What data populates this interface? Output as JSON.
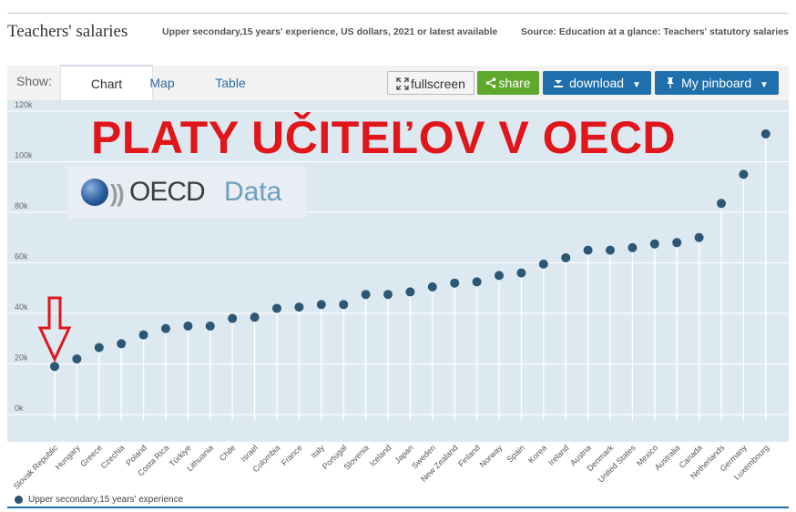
{
  "header": {
    "title": "Teachers' salaries",
    "subtitle": "Upper secondary,15 years' experience, US dollars, 2021 or latest available",
    "source": "Source: Education at a glance: Teachers' statutory salaries"
  },
  "tabs": {
    "show_label": "Show:",
    "items": [
      "Chart",
      "Map",
      "Table"
    ],
    "active": "Chart"
  },
  "buttons": {
    "fullscreen": "fullscreen",
    "share": "share",
    "download": "download",
    "pinboard": "My pinboard"
  },
  "overlay": {
    "headline": "PLATY UČITEĽOV V OECD",
    "logo_brand": "OECD",
    "logo_word": "Data"
  },
  "colors": {
    "marker": "#2b5674",
    "plot_background": "#dde9f1",
    "headline": "#e0161b",
    "arrow": "#e0161b",
    "accent": "#1f6fad",
    "share": "#5fa82e"
  },
  "chart_data": {
    "type": "scatter",
    "style": "lollipop",
    "categories": [
      "Slovak Republic",
      "Hungary",
      "Greece",
      "Czechia",
      "Poland",
      "Costa Rica",
      "Türkiye",
      "Lithuania",
      "Chile",
      "Israel",
      "Colombia",
      "France",
      "Italy",
      "Portugal",
      "Slovenia",
      "Iceland",
      "Japan",
      "Sweden",
      "New Zealand",
      "Finland",
      "Norway",
      "Spain",
      "Korea",
      "Ireland",
      "Austria",
      "Denmark",
      "United States",
      "Mexico",
      "Australia",
      "Canada",
      "Netherlands",
      "Germany",
      "Luxembourg"
    ],
    "series": [
      {
        "name": "Upper secondary,15 years' experience",
        "values": [
          19000,
          22000,
          26500,
          28000,
          31500,
          34000,
          35000,
          35000,
          38000,
          38500,
          42000,
          42500,
          43500,
          43500,
          47500,
          47500,
          48500,
          50500,
          52000,
          52500,
          55000,
          56000,
          59500,
          62000,
          65000,
          65000,
          66000,
          67500,
          68000,
          70000,
          83500,
          95000,
          111000
        ]
      }
    ],
    "yticks": [
      "0k",
      "20k",
      "40k",
      "60k",
      "80k",
      "100k",
      "120k"
    ],
    "ylim": [
      0,
      120000
    ],
    "grid": true,
    "legend_position": "bottom-left",
    "highlight": "Slovak Republic"
  }
}
